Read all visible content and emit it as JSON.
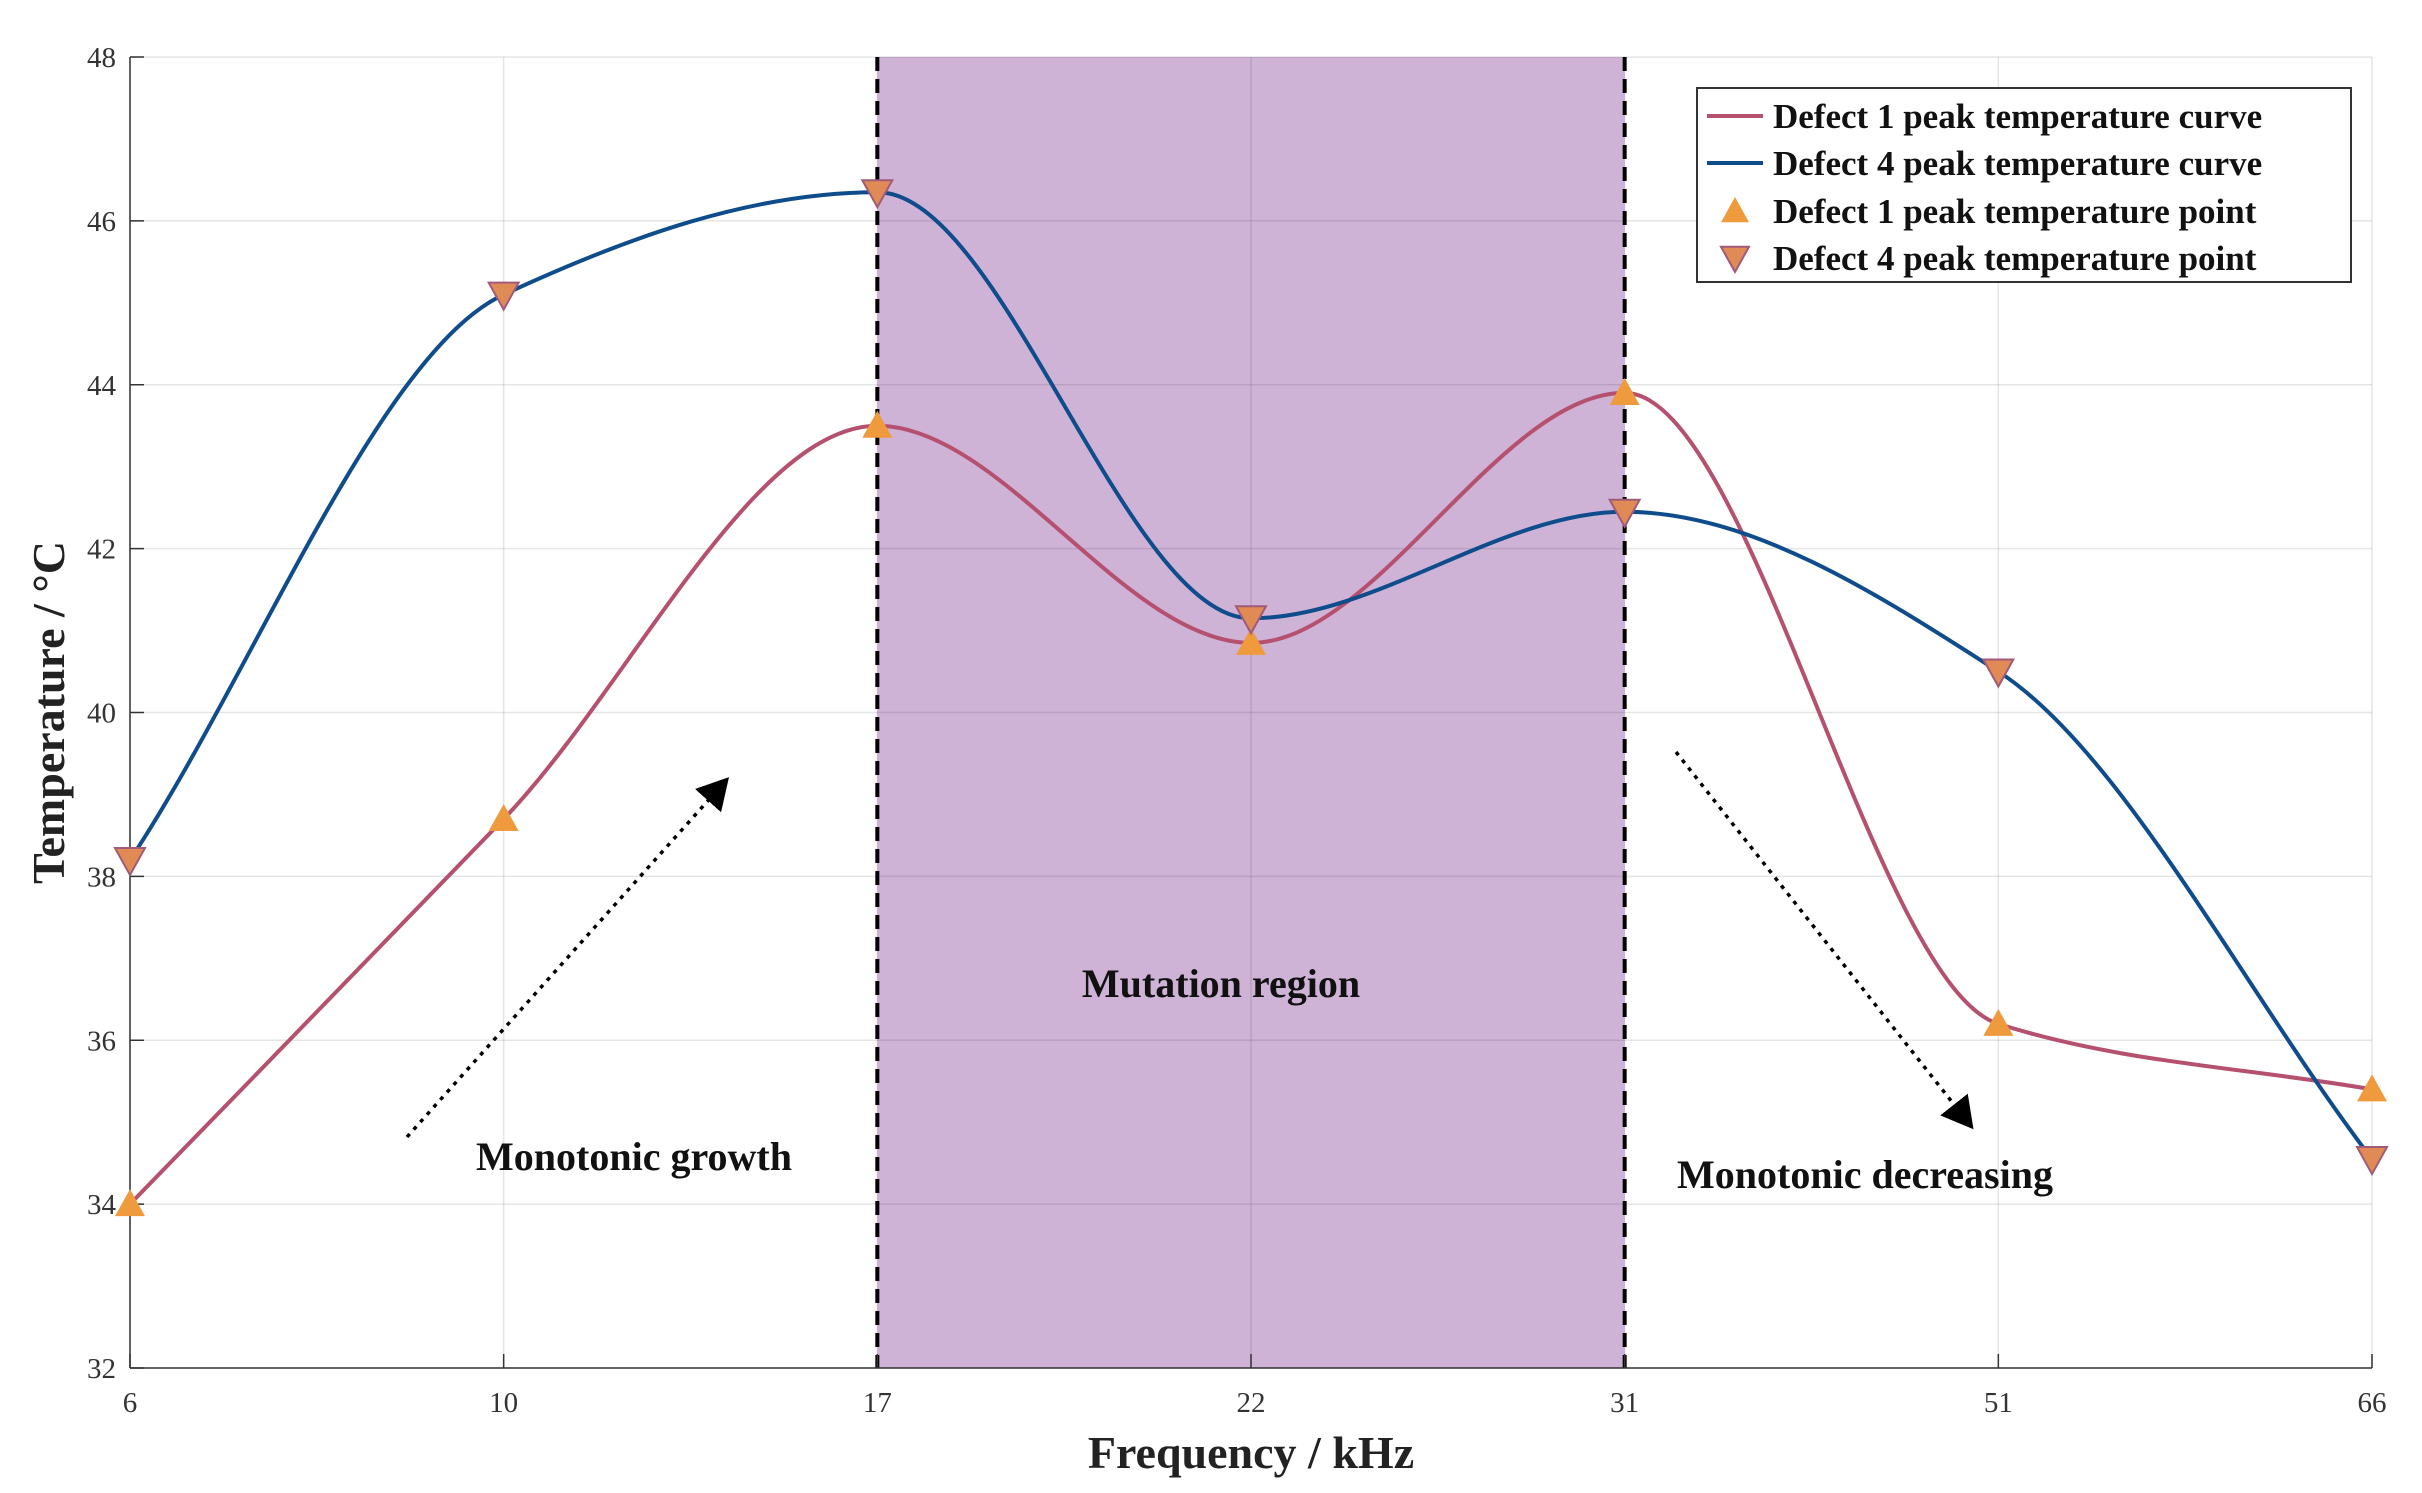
{
  "chart_data": {
    "type": "line",
    "title": "",
    "xlabel": "Frequency / kHz",
    "ylabel": "Temperature / °C",
    "categories": [
      "6",
      "10",
      "17",
      "22",
      "31",
      "51",
      "66"
    ],
    "yticks": [
      "32",
      "34",
      "36",
      "38",
      "40",
      "42",
      "44",
      "46",
      "48"
    ],
    "ylim": [
      32,
      48
    ],
    "grid": true,
    "legend_position": "top-right",
    "series": [
      {
        "name": "Defect 1 peak temperature curve",
        "marker_name": "Defect 1 peak temperature point",
        "marker": "triangle-up",
        "color": "#b5506e",
        "marker_color": "#ef9a3c",
        "values": [
          34.0,
          38.7,
          43.5,
          40.85,
          43.9,
          36.2,
          35.4
        ]
      },
      {
        "name": "Defect 4 peak temperature curve",
        "marker_name": "Defect 4 peak temperature point",
        "marker": "triangle-down",
        "color": "#0f4c8c",
        "marker_color": "#e08a55",
        "values": [
          38.2,
          45.1,
          46.35,
          41.15,
          42.45,
          40.5,
          34.55
        ]
      }
    ],
    "shaded_region": {
      "label": "Mutation region",
      "from": "17",
      "to": "31",
      "color": "#cfb3d7"
    },
    "annotations": [
      {
        "text": "Monotonic growth",
        "arrow": "up-right"
      },
      {
        "text": "Monotonic decreasing",
        "arrow": "down-right"
      }
    ]
  }
}
